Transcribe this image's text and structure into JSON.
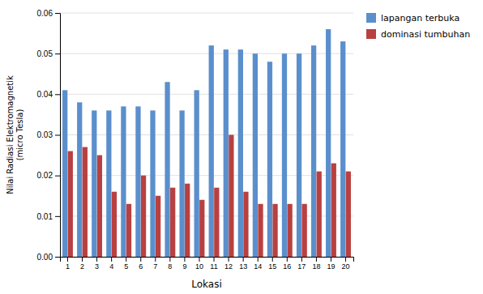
{
  "chart_data": {
    "type": "bar",
    "categories": [
      1,
      2,
      3,
      4,
      5,
      6,
      7,
      8,
      9,
      10,
      11,
      12,
      13,
      14,
      15,
      16,
      17,
      18,
      19,
      20
    ],
    "series": [
      {
        "name": "lapangan terbuka",
        "color": "#5B8FCC",
        "values": [
          0.041,
          0.038,
          0.036,
          0.036,
          0.037,
          0.037,
          0.036,
          0.043,
          0.036,
          0.041,
          0.052,
          0.051,
          0.051,
          0.05,
          0.048,
          0.05,
          0.05,
          0.052,
          0.056,
          0.053
        ]
      },
      {
        "name": "dominasi tumbuhan",
        "color": "#B94040",
        "values": [
          0.026,
          0.027,
          0.025,
          0.016,
          0.013,
          0.02,
          0.015,
          0.017,
          0.018,
          0.014,
          0.017,
          0.03,
          0.016,
          0.013,
          0.013,
          0.013,
          0.013,
          0.021,
          0.023,
          0.021
        ]
      }
    ],
    "xlabel": "Lokasi",
    "ylabel": "Nilai Radiasi Elektromagnetik\n(micro Tesla)",
    "ylim": [
      0,
      0.06
    ],
    "yticks": [
      {
        "value": 0,
        "label": "0.00"
      },
      0.01,
      0.02,
      0.03,
      0.04,
      0.05,
      0.06
    ],
    "grid": true,
    "legend": "right"
  }
}
